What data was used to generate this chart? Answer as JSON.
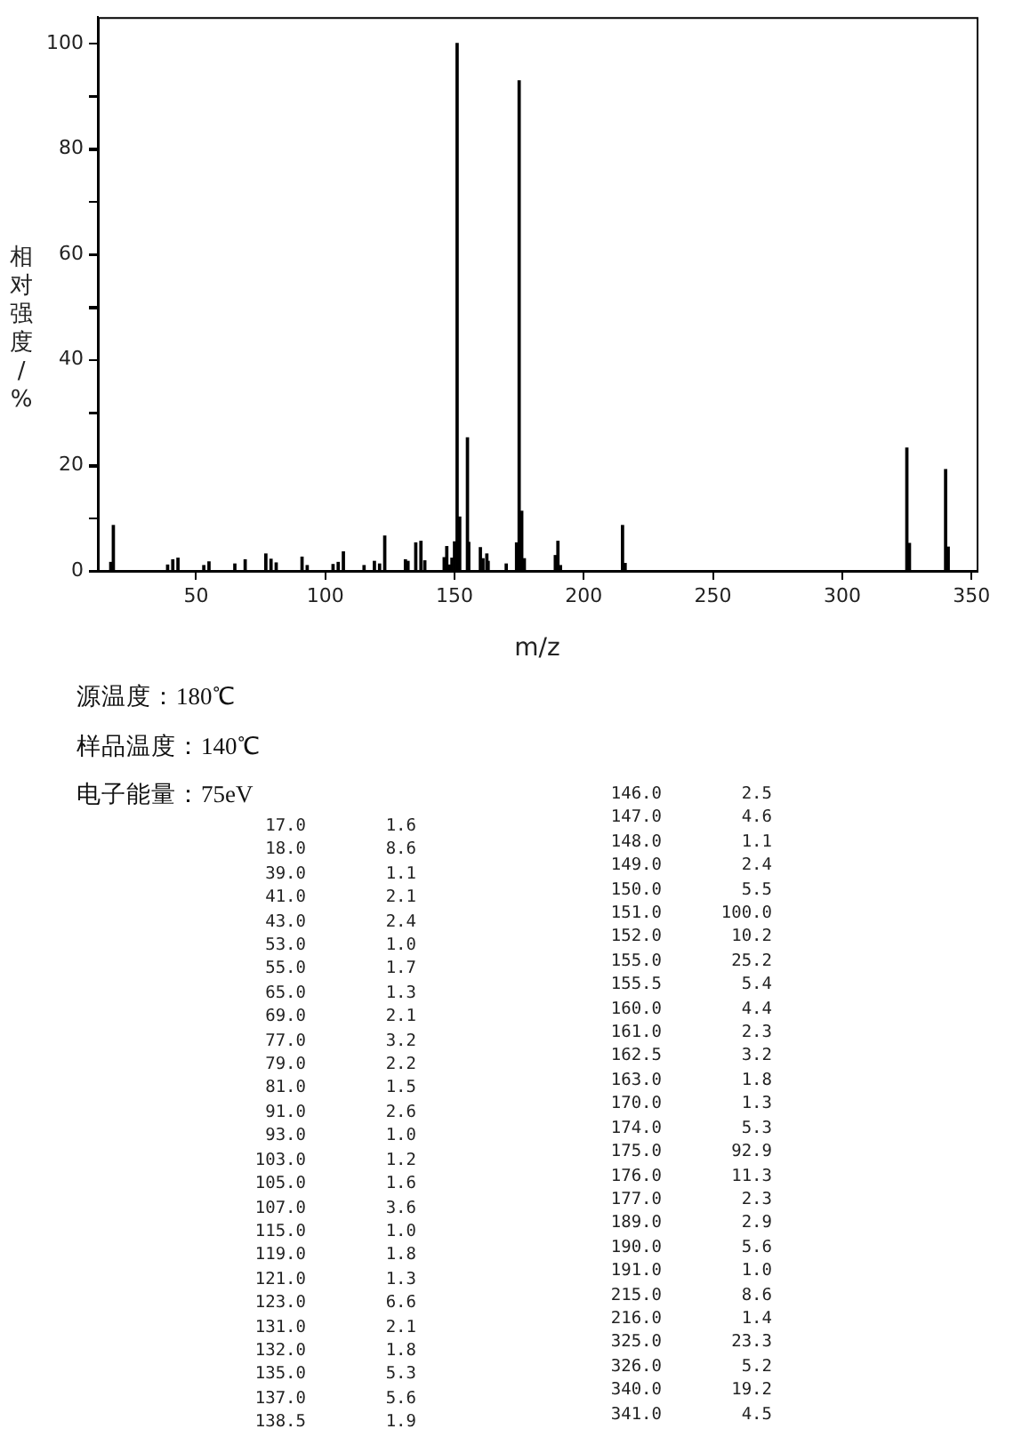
{
  "chart_data": [
    {
      "type": "bar",
      "xlabel": "m/z",
      "ylabel": "相对强度/%",
      "x": [
        17,
        18,
        39,
        41,
        43,
        53,
        55,
        65,
        69,
        77,
        79,
        81,
        91,
        93,
        103,
        105,
        107,
        115,
        119,
        121,
        123,
        131,
        132,
        135,
        137,
        138.5,
        146,
        147,
        148,
        149,
        150,
        151,
        152,
        155,
        155.5,
        160,
        161,
        162.5,
        163,
        170,
        174,
        175,
        176,
        177,
        189,
        190,
        191,
        215,
        216,
        325,
        326,
        340,
        341
      ],
      "values": [
        1.6,
        8.6,
        1.1,
        2.1,
        2.4,
        1.0,
        1.7,
        1.3,
        2.1,
        3.2,
        2.2,
        1.5,
        2.6,
        1.0,
        1.2,
        1.6,
        3.6,
        1.0,
        1.8,
        1.3,
        6.6,
        2.1,
        1.8,
        5.3,
        5.6,
        1.9,
        2.5,
        4.6,
        1.1,
        2.4,
        5.5,
        100.0,
        10.2,
        25.2,
        5.4,
        4.4,
        2.3,
        3.2,
        1.8,
        1.3,
        5.3,
        92.9,
        11.3,
        2.3,
        2.9,
        5.6,
        1.0,
        8.6,
        1.4,
        23.3,
        5.2,
        19.2,
        4.5
      ],
      "color": "#000000",
      "xlim": [
        12,
        352
      ],
      "xticks": [
        50,
        100,
        150,
        200,
        250,
        300,
        350
      ],
      "ylim": [
        0,
        105
      ],
      "yticks": [
        0,
        {
          "value": 10,
          "label": null
        },
        20,
        {
          "value": 30,
          "label": null
        },
        40,
        {
          "value": 50,
          "label": null
        },
        60,
        {
          "value": 70,
          "label": null
        },
        80,
        {
          "value": 90,
          "label": null
        },
        100
      ],
      "annotations": [
        "源温度：180℃",
        "样品温度：140℃",
        "电子能量：75eV"
      ]
    },
    {
      "type": "other",
      "categories": [
        "17.0",
        "18.0",
        "39.0",
        "41.0",
        "43.0",
        "53.0",
        "55.0",
        "65.0",
        "69.0",
        "77.0",
        "79.0",
        "81.0",
        "91.0",
        "93.0",
        "103.0",
        "105.0",
        "107.0",
        "115.0",
        "119.0",
        "121.0",
        "123.0",
        "131.0",
        "132.0",
        "135.0",
        "137.0",
        "138.5",
        "146.0",
        "147.0",
        "148.0",
        "149.0",
        "150.0",
        "151.0",
        "152.0",
        "155.0",
        "155.5",
        "160.0",
        "161.0",
        "162.5",
        "163.0",
        "170.0",
        "174.0",
        "175.0",
        "176.0",
        "177.0",
        "189.0",
        "190.0",
        "191.0",
        "215.0",
        "216.0",
        "325.0",
        "326.0",
        "340.0",
        "341.0"
      ],
      "values": [
        1.6,
        8.6,
        1.1,
        2.1,
        2.4,
        1.0,
        1.7,
        1.3,
        2.1,
        3.2,
        2.2,
        1.5,
        2.6,
        1.0,
        1.2,
        1.6,
        3.6,
        1.0,
        1.8,
        1.3,
        6.6,
        2.1,
        1.8,
        5.3,
        5.6,
        1.9,
        2.5,
        4.6,
        1.1,
        2.4,
        5.5,
        100.0,
        10.2,
        25.2,
        5.4,
        4.4,
        2.3,
        3.2,
        1.8,
        1.3,
        5.3,
        92.9,
        11.3,
        2.3,
        2.9,
        5.6,
        1.0,
        8.6,
        1.4,
        23.3,
        5.2,
        19.2,
        4.5
      ],
      "value_labels": [
        "1.6",
        "8.6",
        "1.1",
        "2.1",
        "2.4",
        "1.0",
        "1.7",
        "1.3",
        "2.1",
        "3.2",
        "2.2",
        "1.5",
        "2.6",
        "1.0",
        "1.2",
        "1.6",
        "3.6",
        "1.0",
        "1.8",
        "1.3",
        "6.6",
        "2.1",
        "1.8",
        "5.3",
        "5.6",
        "1.9",
        "2.5",
        "4.6",
        "1.1",
        "2.4",
        "5.5",
        "100.0",
        "10.2",
        "25.2",
        "5.4",
        "4.4",
        "2.3",
        "3.2",
        "1.8",
        "1.3",
        "5.3",
        "92.9",
        "11.3",
        "2.3",
        "2.9",
        "5.6",
        "1.0",
        "8.6",
        "1.4",
        "23.3",
        "5.2",
        "19.2",
        "4.5"
      ]
    }
  ]
}
